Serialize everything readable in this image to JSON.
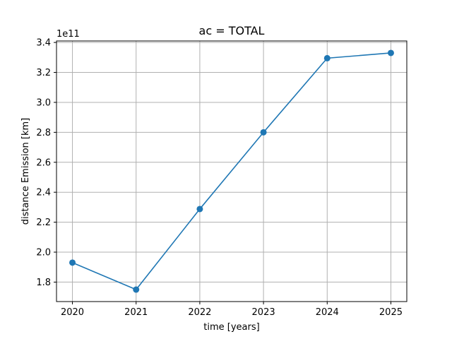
{
  "chart_data": {
    "type": "line",
    "title": "ac = TOTAL",
    "xlabel": "time [years]",
    "ylabel": "distance Emission [km]",
    "y_offset_label": "1e11",
    "x": [
      2020,
      2021,
      2022,
      2023,
      2024,
      2025
    ],
    "series": [
      {
        "values": [
          193000000000,
          175000000000,
          228800000000,
          280000000000,
          329500000000,
          333000000000
        ]
      }
    ],
    "x_ticks": [
      "2020",
      "2021",
      "2022",
      "2023",
      "2024",
      "2025"
    ],
    "y_ticks": [
      "1.8",
      "2.0",
      "2.2",
      "2.4",
      "2.6",
      "2.8",
      "3.0",
      "3.2",
      "3.4"
    ],
    "xlim": [
      2019.75,
      2025.25
    ],
    "ylim": [
      167000000000,
      341000000000
    ],
    "y_scale": 100000000000,
    "grid": true,
    "line_color": "#1f77b4",
    "grid_color": "#b0b0b0"
  }
}
